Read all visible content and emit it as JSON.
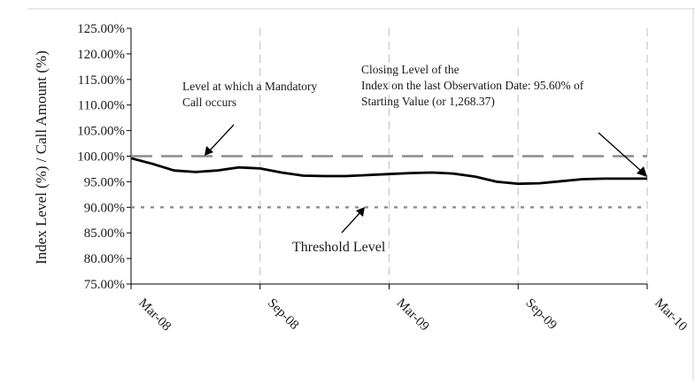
{
  "chart_data": {
    "type": "line",
    "ylabel": "Index Level (%) / Call Amount (%)",
    "xlabel": "",
    "title": "",
    "ylim": [
      75,
      125
    ],
    "y_ticks": [
      "75.00%",
      "80.00%",
      "85.00%",
      "90.00%",
      "95.00%",
      "100.00%",
      "105.00%",
      "110.00%",
      "115.00%",
      "120.00%",
      "125.00%"
    ],
    "x_ticks": [
      "Mar-08",
      "Sep-08",
      "Mar-09",
      "Sep-09",
      "Mar-10"
    ],
    "grid": "vertical dashed at x ticks",
    "x_range_months": [
      0,
      24
    ],
    "series": [
      {
        "name": "",
        "style": "solid",
        "color": "#000000",
        "x": [
          0,
          1,
          2,
          3,
          4,
          5,
          6,
          7,
          8,
          9,
          10,
          11,
          12,
          13,
          14,
          15,
          16,
          17,
          18,
          19,
          20,
          21,
          22,
          23,
          24
        ],
        "values": [
          99.6,
          98.5,
          97.2,
          96.9,
          97.2,
          97.8,
          97.6,
          96.8,
          96.2,
          96.1,
          96.1,
          96.3,
          96.5,
          96.7,
          96.8,
          96.6,
          96.0,
          95.0,
          94.6,
          94.7,
          95.1,
          95.5,
          95.6,
          95.6,
          95.6
        ]
      },
      {
        "name": "",
        "style": "dashed",
        "color": "#8c8c8c",
        "x": [
          0,
          24
        ],
        "values": [
          100,
          100
        ]
      },
      {
        "name": "",
        "style": "dotted",
        "color": "#8c8c8c",
        "x": [
          0,
          24
        ],
        "values": [
          90,
          90
        ]
      }
    ],
    "annotations": {
      "mandatory_call": [
        "Level at which a Mandatory",
        "Call occurs"
      ],
      "closing_level": [
        "Closing Level of the",
        "Index on the last Observation Date: 95.60% of",
        "Starting Value (or 1,268.37)"
      ],
      "threshold": "Threshold Level"
    }
  }
}
